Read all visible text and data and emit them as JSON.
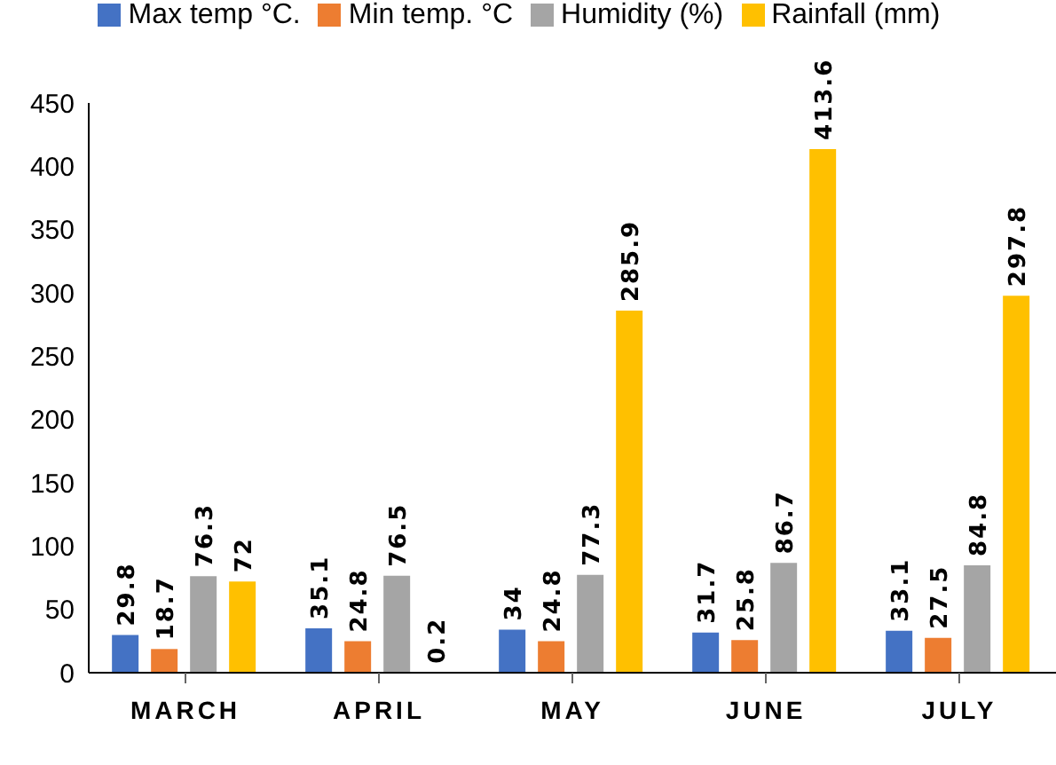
{
  "chart_data": {
    "type": "bar",
    "categories": [
      "MARCH",
      "APRIL",
      "MAY",
      "JUNE",
      "JULY"
    ],
    "series": [
      {
        "name": "Max temp °C.",
        "color": "#4472c4",
        "values": [
          29.8,
          35.1,
          34,
          31.7,
          33.1
        ]
      },
      {
        "name": "Min temp. °C",
        "color": "#ed7d31",
        "values": [
          18.7,
          24.8,
          24.8,
          25.8,
          27.5
        ]
      },
      {
        "name": "Humidity  (%)",
        "color": "#a5a5a5",
        "values": [
          76.3,
          76.5,
          77.3,
          86.7,
          84.8
        ]
      },
      {
        "name": "Rainfall (mm)",
        "color": "#ffc000",
        "values": [
          72,
          0.2,
          285.9,
          413.6,
          297.8
        ]
      }
    ],
    "ylim": [
      0,
      450
    ],
    "yticks": [
      0,
      50,
      100,
      150,
      200,
      250,
      300,
      350,
      400,
      450
    ],
    "data_labels": true,
    "legend": "top",
    "grid": false
  }
}
